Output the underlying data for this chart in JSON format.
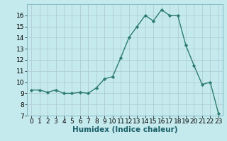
{
  "x": [
    0,
    1,
    2,
    3,
    4,
    5,
    6,
    7,
    8,
    9,
    10,
    11,
    12,
    13,
    14,
    15,
    16,
    17,
    18,
    19,
    20,
    21,
    22,
    23
  ],
  "y": [
    9.3,
    9.3,
    9.1,
    9.3,
    9.0,
    9.0,
    9.1,
    9.0,
    9.5,
    10.3,
    10.5,
    12.2,
    14.0,
    15.0,
    16.0,
    15.5,
    16.5,
    16.0,
    16.0,
    13.3,
    11.5,
    9.8,
    10.0,
    7.2
  ],
  "line_color": "#2e7d6e",
  "marker": "D",
  "marker_size": 2.2,
  "bg_color": "#c5eaed",
  "grid_color": "#b0cdd4",
  "xlabel": "Humidex (Indice chaleur)",
  "xlim": [
    -0.5,
    23.5
  ],
  "ylim": [
    7,
    17
  ],
  "yticks": [
    7,
    8,
    9,
    10,
    11,
    12,
    13,
    14,
    15,
    16
  ],
  "xticks": [
    0,
    1,
    2,
    3,
    4,
    5,
    6,
    7,
    8,
    9,
    10,
    11,
    12,
    13,
    14,
    15,
    16,
    17,
    18,
    19,
    20,
    21,
    22,
    23
  ],
  "xlabel_fontsize": 7.5,
  "tick_fontsize": 6.5,
  "line_width": 1.0
}
